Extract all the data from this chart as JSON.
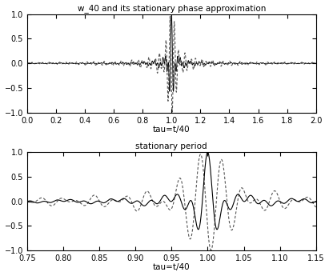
{
  "title1": "w_40 and its stationary phase approximation",
  "title2": "stationary period",
  "xlabel": "tau=t/40",
  "xlim1": [
    0,
    2
  ],
  "ylim1": [
    -1,
    1
  ],
  "xlim2": [
    0.75,
    1.15
  ],
  "ylim2": [
    -1,
    1
  ],
  "yticks1": [
    -1,
    -0.5,
    0,
    0.5,
    1
  ],
  "yticks2": [
    -1,
    -0.5,
    0,
    0.5,
    1
  ],
  "xticks1": [
    0,
    0.2,
    0.4,
    0.6,
    0.8,
    1.0,
    1.2,
    1.4,
    1.6,
    1.8,
    2.0
  ],
  "xticks2": [
    0.75,
    0.8,
    0.85,
    0.9,
    0.95,
    1.0,
    1.05,
    1.1,
    1.15
  ],
  "N": 40,
  "background_color": "#ffffff",
  "line_color_solid": "#000000",
  "line_color_dashed": "#555555",
  "fig_width": 4.11,
  "fig_height": 3.45,
  "dpi": 100
}
